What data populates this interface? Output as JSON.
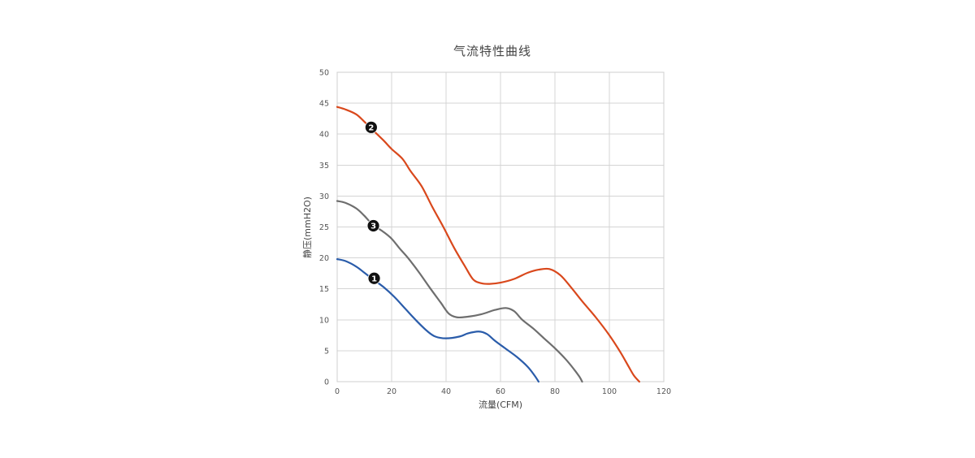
{
  "chart_data": {
    "type": "line",
    "title": "气流特性曲线",
    "xlabel": "流量(CFM)",
    "ylabel": "静压(mmH2O)",
    "xlim": [
      0,
      120
    ],
    "ylim": [
      0,
      50
    ],
    "x_ticks": [
      0,
      20,
      40,
      60,
      80,
      100,
      120
    ],
    "y_ticks": [
      0,
      5,
      10,
      15,
      20,
      25,
      30,
      35,
      40,
      45,
      50
    ],
    "grid": true,
    "legend": "none",
    "series": [
      {
        "marker": "1",
        "color": "#2a5caa",
        "points": [
          [
            0,
            19.8
          ],
          [
            3,
            19.5
          ],
          [
            7,
            18.6
          ],
          [
            10,
            17.6
          ],
          [
            13,
            16.6
          ],
          [
            17,
            15.3
          ],
          [
            21,
            13.7
          ],
          [
            25,
            11.8
          ],
          [
            29,
            9.9
          ],
          [
            33,
            8.2
          ],
          [
            36,
            7.3
          ],
          [
            40,
            7.0
          ],
          [
            45,
            7.3
          ],
          [
            48,
            7.8
          ],
          [
            52,
            8.1
          ],
          [
            55,
            7.7
          ],
          [
            58,
            6.6
          ],
          [
            62,
            5.3
          ],
          [
            66,
            4.0
          ],
          [
            70,
            2.4
          ],
          [
            72.5,
            1.0
          ],
          [
            74,
            0
          ]
        ]
      },
      {
        "marker": "2",
        "color": "#d9481c",
        "points": [
          [
            0,
            44.4
          ],
          [
            3,
            44.0
          ],
          [
            7,
            43.2
          ],
          [
            10,
            42.0
          ],
          [
            13,
            40.7
          ],
          [
            17,
            39.0
          ],
          [
            20,
            37.6
          ],
          [
            24,
            36.0
          ],
          [
            27,
            34.0
          ],
          [
            31,
            31.6
          ],
          [
            35,
            28.2
          ],
          [
            39,
            25.0
          ],
          [
            43,
            21.6
          ],
          [
            47,
            18.6
          ],
          [
            50,
            16.5
          ],
          [
            53,
            15.9
          ],
          [
            56,
            15.8
          ],
          [
            60,
            16.0
          ],
          [
            65,
            16.6
          ],
          [
            70,
            17.6
          ],
          [
            74,
            18.1
          ],
          [
            78,
            18.2
          ],
          [
            82,
            17.2
          ],
          [
            86,
            15.2
          ],
          [
            90,
            13.0
          ],
          [
            95,
            10.4
          ],
          [
            100,
            7.5
          ],
          [
            104,
            4.8
          ],
          [
            107,
            2.5
          ],
          [
            109,
            1.0
          ],
          [
            111,
            0
          ]
        ]
      },
      {
        "marker": "3",
        "color": "#6e6e6e",
        "points": [
          [
            0,
            29.2
          ],
          [
            3,
            28.9
          ],
          [
            7,
            28.0
          ],
          [
            10,
            26.8
          ],
          [
            13,
            25.4
          ],
          [
            17,
            24.2
          ],
          [
            20,
            23.1
          ],
          [
            23,
            21.5
          ],
          [
            26,
            20.0
          ],
          [
            30,
            17.7
          ],
          [
            34,
            15.2
          ],
          [
            38,
            12.8
          ],
          [
            41,
            11.0
          ],
          [
            44,
            10.4
          ],
          [
            48,
            10.5
          ],
          [
            53,
            10.9
          ],
          [
            58,
            11.6
          ],
          [
            62,
            11.9
          ],
          [
            65,
            11.4
          ],
          [
            68,
            10.0
          ],
          [
            72,
            8.6
          ],
          [
            76,
            7.0
          ],
          [
            80,
            5.4
          ],
          [
            84,
            3.6
          ],
          [
            87,
            2.0
          ],
          [
            89,
            0.8
          ],
          [
            90,
            0
          ]
        ]
      }
    ],
    "markers": [
      {
        "label": "1",
        "x": 13.6,
        "y": 16.7
      },
      {
        "label": "2",
        "x": 12.5,
        "y": 41.1
      },
      {
        "label": "3",
        "x": 13.3,
        "y": 25.2
      }
    ]
  }
}
